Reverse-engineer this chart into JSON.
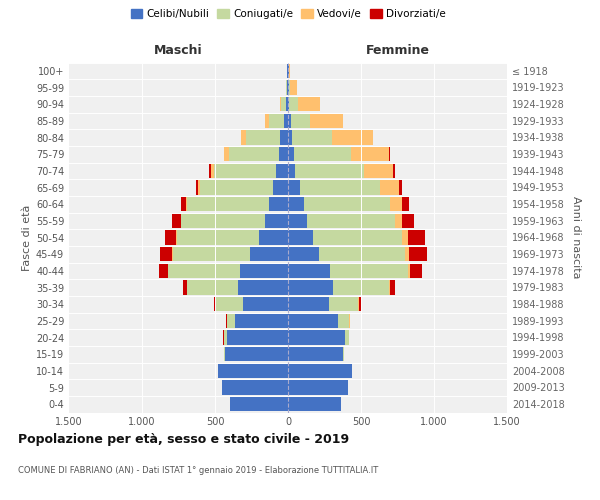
{
  "age_groups": [
    "0-4",
    "5-9",
    "10-14",
    "15-19",
    "20-24",
    "25-29",
    "30-34",
    "35-39",
    "40-44",
    "45-49",
    "50-54",
    "55-59",
    "60-64",
    "65-69",
    "70-74",
    "75-79",
    "80-84",
    "85-89",
    "90-94",
    "95-99",
    "100+"
  ],
  "birth_years": [
    "2014-2018",
    "2009-2013",
    "2004-2008",
    "1999-2003",
    "1994-1998",
    "1989-1993",
    "1984-1988",
    "1979-1983",
    "1974-1978",
    "1969-1973",
    "1964-1968",
    "1959-1963",
    "1954-1958",
    "1949-1953",
    "1944-1948",
    "1939-1943",
    "1934-1938",
    "1929-1933",
    "1924-1928",
    "1919-1923",
    "≤ 1918"
  ],
  "maschi_celibe": [
    400,
    450,
    480,
    430,
    420,
    360,
    310,
    340,
    330,
    260,
    200,
    160,
    130,
    100,
    80,
    65,
    55,
    30,
    15,
    10,
    5
  ],
  "maschi_coniugato": [
    0,
    0,
    0,
    5,
    20,
    60,
    180,
    350,
    490,
    530,
    560,
    570,
    560,
    500,
    430,
    340,
    230,
    100,
    30,
    5,
    0
  ],
  "maschi_vedovo": [
    0,
    0,
    0,
    0,
    0,
    0,
    0,
    2,
    5,
    5,
    5,
    5,
    10,
    15,
    20,
    30,
    40,
    30,
    10,
    2,
    0
  ],
  "maschi_divorziato": [
    0,
    0,
    0,
    0,
    2,
    5,
    15,
    30,
    60,
    80,
    80,
    60,
    30,
    15,
    10,
    5,
    0,
    0,
    0,
    0,
    0
  ],
  "femmine_celibe": [
    360,
    410,
    440,
    380,
    390,
    340,
    280,
    310,
    290,
    210,
    170,
    130,
    110,
    80,
    50,
    40,
    30,
    20,
    10,
    8,
    5
  ],
  "femmine_coniugato": [
    0,
    0,
    0,
    5,
    25,
    80,
    200,
    380,
    530,
    590,
    610,
    600,
    590,
    550,
    470,
    390,
    270,
    130,
    60,
    5,
    0
  ],
  "femmine_vedovo": [
    0,
    0,
    0,
    0,
    0,
    2,
    5,
    10,
    15,
    30,
    40,
    50,
    80,
    130,
    200,
    260,
    280,
    230,
    150,
    50,
    10
  ],
  "femmine_divorziata": [
    0,
    0,
    0,
    0,
    2,
    5,
    15,
    30,
    80,
    120,
    120,
    80,
    50,
    20,
    15,
    10,
    5,
    0,
    0,
    0,
    0
  ],
  "color_celibe": "#4472c4",
  "color_coniugato": "#c5d9a0",
  "color_vedovo": "#ffc06e",
  "color_divorziato": "#cc0000",
  "title": "Popolazione per età, sesso e stato civile - 2019",
  "subtitle": "COMUNE DI FABRIANO (AN) - Dati ISTAT 1° gennaio 2019 - Elaborazione TUTTITALIA.IT",
  "xlabel_left": "Maschi",
  "xlabel_right": "Femmine",
  "ylabel_left": "Fasce di età",
  "ylabel_right": "Anni di nascita",
  "xlim": 1500,
  "bg_color": "#f0f0f0"
}
